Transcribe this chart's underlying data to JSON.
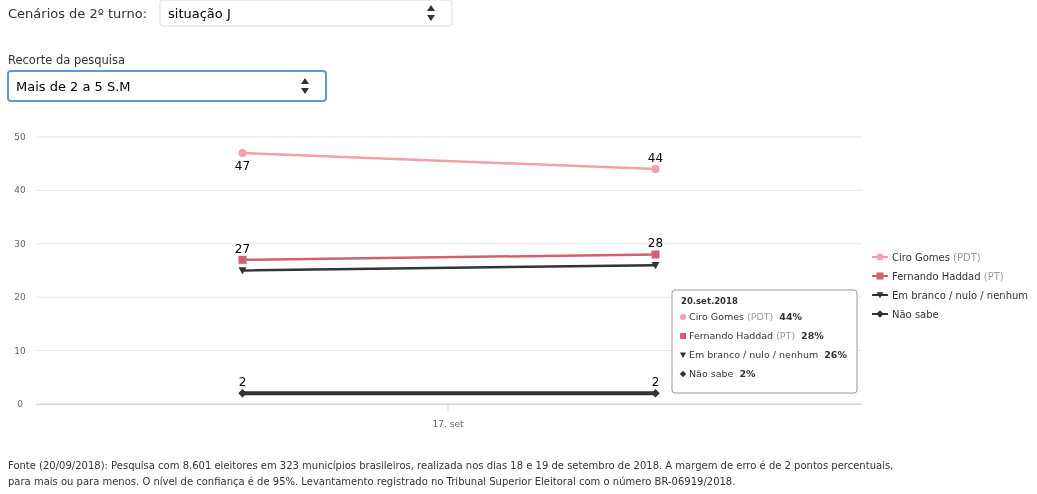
{
  "chart_data": {
    "type": "line",
    "categories": [
      null,
      null
    ],
    "ylim": [
      0,
      50
    ],
    "yticks": [
      0,
      10,
      20,
      30,
      40,
      50
    ],
    "grid": "y",
    "legend": "right",
    "series": [
      {
        "name": "Ciro Gomes (PDT)",
        "color": "#f2a0aa",
        "marker": "circle",
        "values": [
          47,
          44
        ],
        "value_labels": [
          "47",
          "44"
        ]
      },
      {
        "name": "Fernando Haddad (PT)",
        "color": "#d65f6f",
        "marker": "square",
        "values": [
          27,
          28
        ],
        "value_labels": [
          "27",
          "28"
        ]
      },
      {
        "name": "Em branco / nulo / nenhum",
        "color": "#333333",
        "marker": "triangle",
        "values": [
          25,
          26
        ]
      },
      {
        "name": "Não sabe",
        "color": "#333333",
        "marker": "diamond",
        "values": [
          2,
          2
        ],
        "value_labels": [
          "2",
          "2"
        ]
      }
    ],
    "annotations": [
      "Cenários de 2º turno:",
      "situação J",
      "Recorte da pesquisa",
      "Mais de 2 a 5 S.M",
      "20.set.2018",
      "Ciro Gomes (PDT)  44%",
      "Fernando Haddad (PT)  28%",
      "Em branco / nulo / nenhum  26%",
      "Não sabe  2%",
      "17. set",
      "Fonte (20/09/2018): Pesquisa com 8.601 eleitores em 323 municípios brasileiros, realizada nos dias 18 e 19 de setembro de 2018. A margem de erro é de 2 pontos percentuais, para mais ou para menos. O nível de confiança é de 95%. Levantamento registrado no Tribunal Superior Eleitoral com o número BR-06919/2018."
    ]
  }
}
